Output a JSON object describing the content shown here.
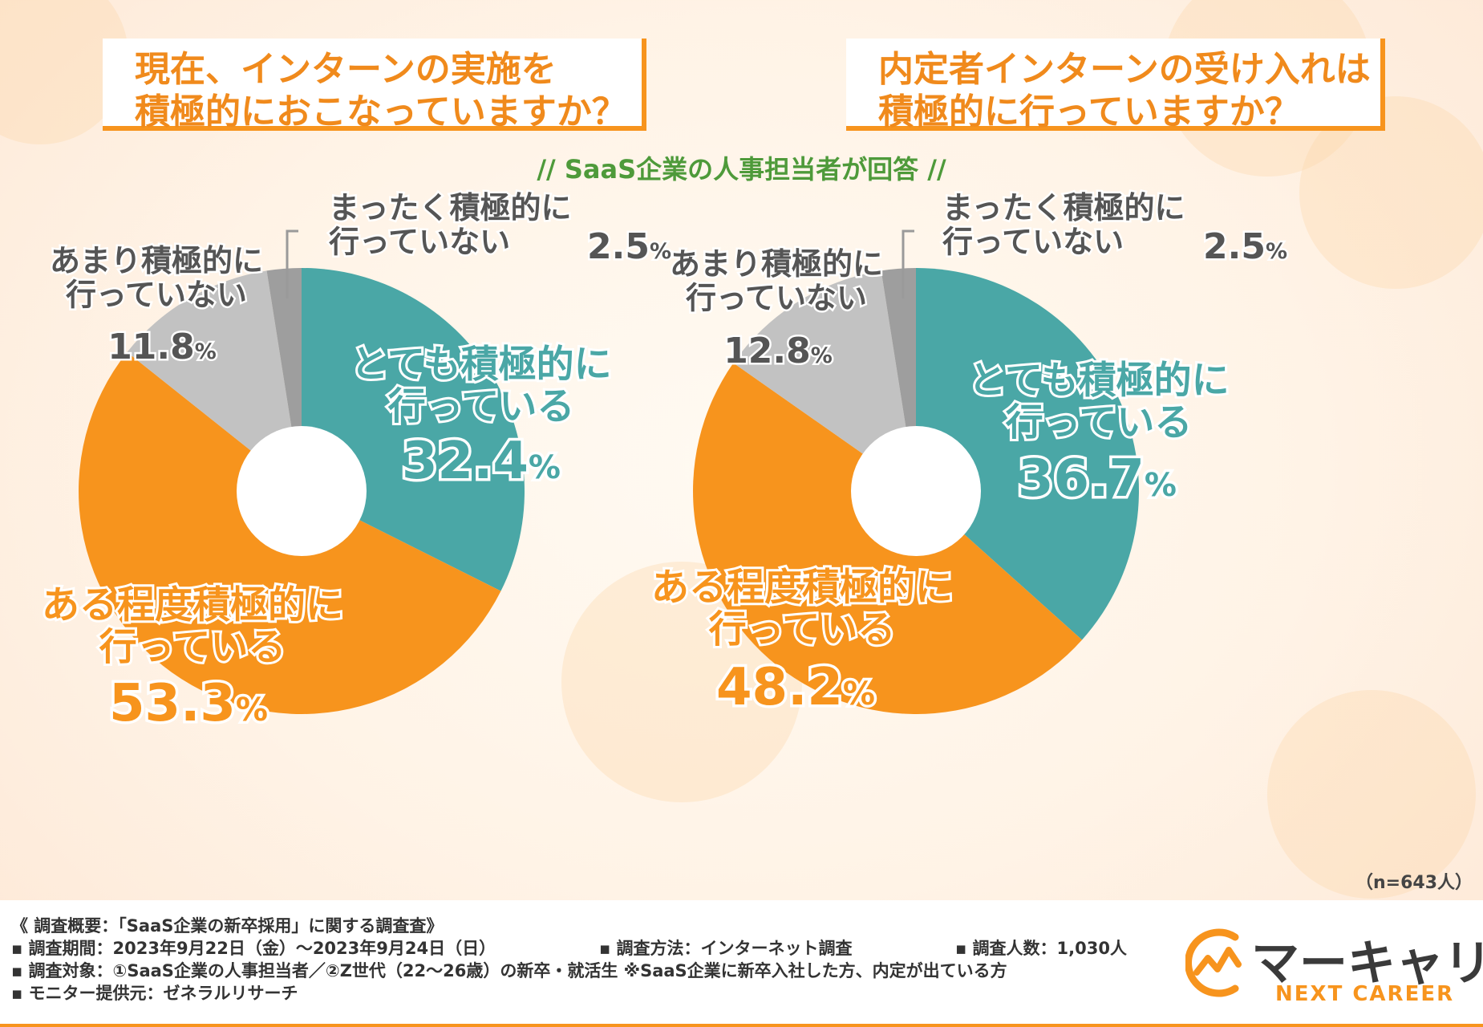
{
  "titles": {
    "left": [
      "現在、インターンの実施を",
      "積極的におこなっていますか？"
    ],
    "right": [
      "内定者インターンの受け入れは",
      "積極的に行っていますか？"
    ]
  },
  "subtitle": "// SaaS企業の人事担当者が回答 //",
  "sample_size": "（n=643人）",
  "colors": {
    "very": "#4aa7a6",
    "somewhat": "#f7941d",
    "not_much": "#c2c2c2",
    "not_at_all": "#9e9e9e",
    "title_orange": "#f08a1c",
    "subtitle_green": "#4e9a3a"
  },
  "chart_data": [
    {
      "type": "pie",
      "title": "現在、インターンの実施を積極的におこなっていますか？",
      "categories": [
        "とても積極的に行っている",
        "ある程度積極的に行っている",
        "あまり積極的に行っていない",
        "まったく積極的に行っていない"
      ],
      "values": [
        32.4,
        53.3,
        11.8,
        2.5
      ],
      "labels": [
        {
          "lines": [
            "とても積極的に",
            "行っている"
          ],
          "value": "32.4",
          "unit": "%"
        },
        {
          "lines": [
            "ある程度積極的に",
            "行っている"
          ],
          "value": "53.3",
          "unit": "%"
        },
        {
          "lines": [
            "あまり積極的に",
            "行っていない"
          ],
          "value": "11.8",
          "unit": "%"
        },
        {
          "lines": [
            "まったく積極的に",
            "行っていない"
          ],
          "value": "2.5",
          "unit": "%"
        }
      ]
    },
    {
      "type": "pie",
      "title": "内定者インターンの受け入れは積極的に行っていますか？",
      "categories": [
        "とても積極的に行っている",
        "ある程度積極的に行っている",
        "あまり積極的に行っていない",
        "まったく積極的に行っていない"
      ],
      "values": [
        36.7,
        48.2,
        12.8,
        2.5
      ],
      "labels": [
        {
          "lines": [
            "とても積極的に",
            "行っている"
          ],
          "value": "36.7",
          "unit": "%"
        },
        {
          "lines": [
            "ある程度積極的に",
            "行っている"
          ],
          "value": "48.2",
          "unit": "%"
        },
        {
          "lines": [
            "あまり積極的に",
            "行っていない"
          ],
          "value": "12.8",
          "unit": "%"
        },
        {
          "lines": [
            "まったく積極的に",
            "行っていない"
          ],
          "value": "2.5",
          "unit": "%"
        }
      ]
    }
  ],
  "footer": {
    "overview": "《 調査概要：「SaaS企業の新卒採用」に関する調査査》",
    "period": "▪ 調査期間：2023年9月22日（金）〜2023年9月24日（日）",
    "method": "▪ 調査方法：インターネット調査",
    "count": "▪ 調査人数：1,030人",
    "target": "▪ 調査対象：①SaaS企業の人事担当者／②Z世代（22〜26歳）の新卒・就活生 ※SaaS企業に新卒入社した方、内定が出ている方",
    "provider": "▪ モニター提供元：ゼネラルリサーチ"
  },
  "brand": {
    "name": "マーキャリ",
    "sub": "NEXT CAREER"
  }
}
